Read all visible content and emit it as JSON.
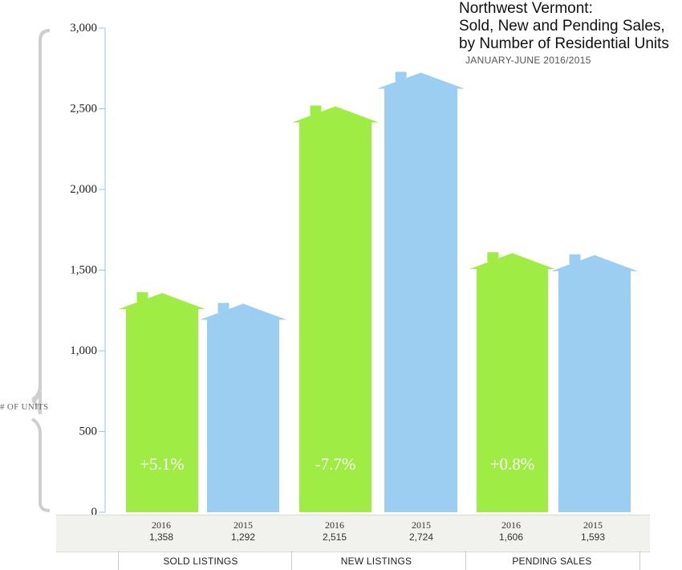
{
  "title_lines": [
    "Northwest Vermont:",
    "Sold, New and Pending Sales,",
    "by Number of Residential Units"
  ],
  "subtitle": "JANUARY-JUNE  2016/2015",
  "ylabel": "# OF UNITS",
  "colors": {
    "y2016": "#9fec45",
    "y2015": "#9ccef2",
    "axis": "#8fc9ee"
  },
  "chart_data": {
    "type": "bar",
    "categories": [
      "SOLD LISTINGS",
      "NEW LISTINGS",
      "PENDING SALES"
    ],
    "series": [
      {
        "name": "2016",
        "values": [
          1358,
          2515,
          1606
        ]
      },
      {
        "name": "2015",
        "values": [
          1292,
          2724,
          1593
        ]
      }
    ],
    "changes": [
      "+5.1%",
      "-7.7%",
      "+0.8%"
    ],
    "ylim": [
      0,
      3000
    ],
    "yticks": [
      0,
      500,
      1000,
      1500,
      2000,
      2500,
      3000
    ],
    "ytick_labels": [
      "0",
      "500",
      "1,000",
      "1,500",
      "2,000",
      "2,500",
      "3,000"
    ],
    "value_labels": [
      [
        "1,358",
        "1,292"
      ],
      [
        "2,515",
        "2,724"
      ],
      [
        "1,606",
        "1,593"
      ]
    ],
    "grid": false
  }
}
